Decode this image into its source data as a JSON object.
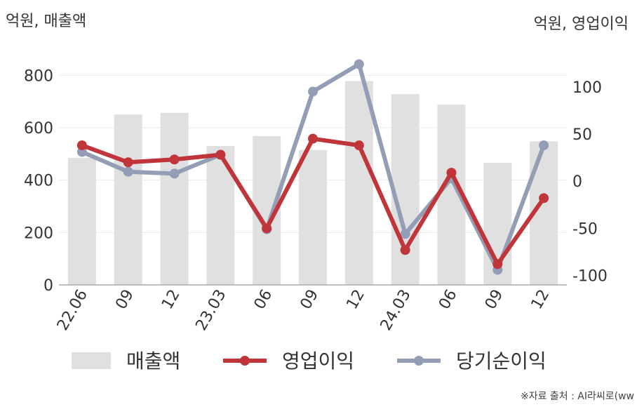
{
  "units": {
    "left": "억원, 매출액",
    "right": "억원, 영업이익"
  },
  "source": "※자료 출처 : AI라씨로(ww",
  "colors": {
    "revenue": "#e0e0e0",
    "operating": "#c0353a",
    "net": "#939db5",
    "grid": "#ebebeb",
    "axis": "#aaaaaa"
  },
  "chart_data": {
    "type": "bar",
    "categories": [
      "22.06",
      "09",
      "12",
      "23.03",
      "06",
      "09",
      "12",
      "24.03",
      "06",
      "09",
      "12"
    ],
    "left_axis": {
      "ylim": [
        0,
        900
      ],
      "ticks": [
        0,
        200,
        400,
        600,
        800
      ]
    },
    "right_axis": {
      "ylim": [
        -110,
        140
      ],
      "ticks": [
        -100,
        -50,
        0,
        50,
        100
      ]
    },
    "series": [
      {
        "name": "매출액",
        "type": "bar",
        "axis": "left",
        "values": [
          485,
          650,
          657,
          530,
          568,
          515,
          778,
          728,
          688,
          466,
          548
        ]
      },
      {
        "name": "영업이익",
        "type": "line",
        "axis": "right",
        "values": [
          38,
          20,
          23,
          28,
          -50,
          45,
          38,
          -73,
          9,
          -88,
          -18
        ]
      },
      {
        "name": "당기순이익",
        "type": "line",
        "axis": "right",
        "values": [
          31,
          10,
          8,
          28,
          -51,
          95,
          124,
          -56,
          3,
          -94,
          38
        ]
      }
    ],
    "legend": "bottom"
  }
}
